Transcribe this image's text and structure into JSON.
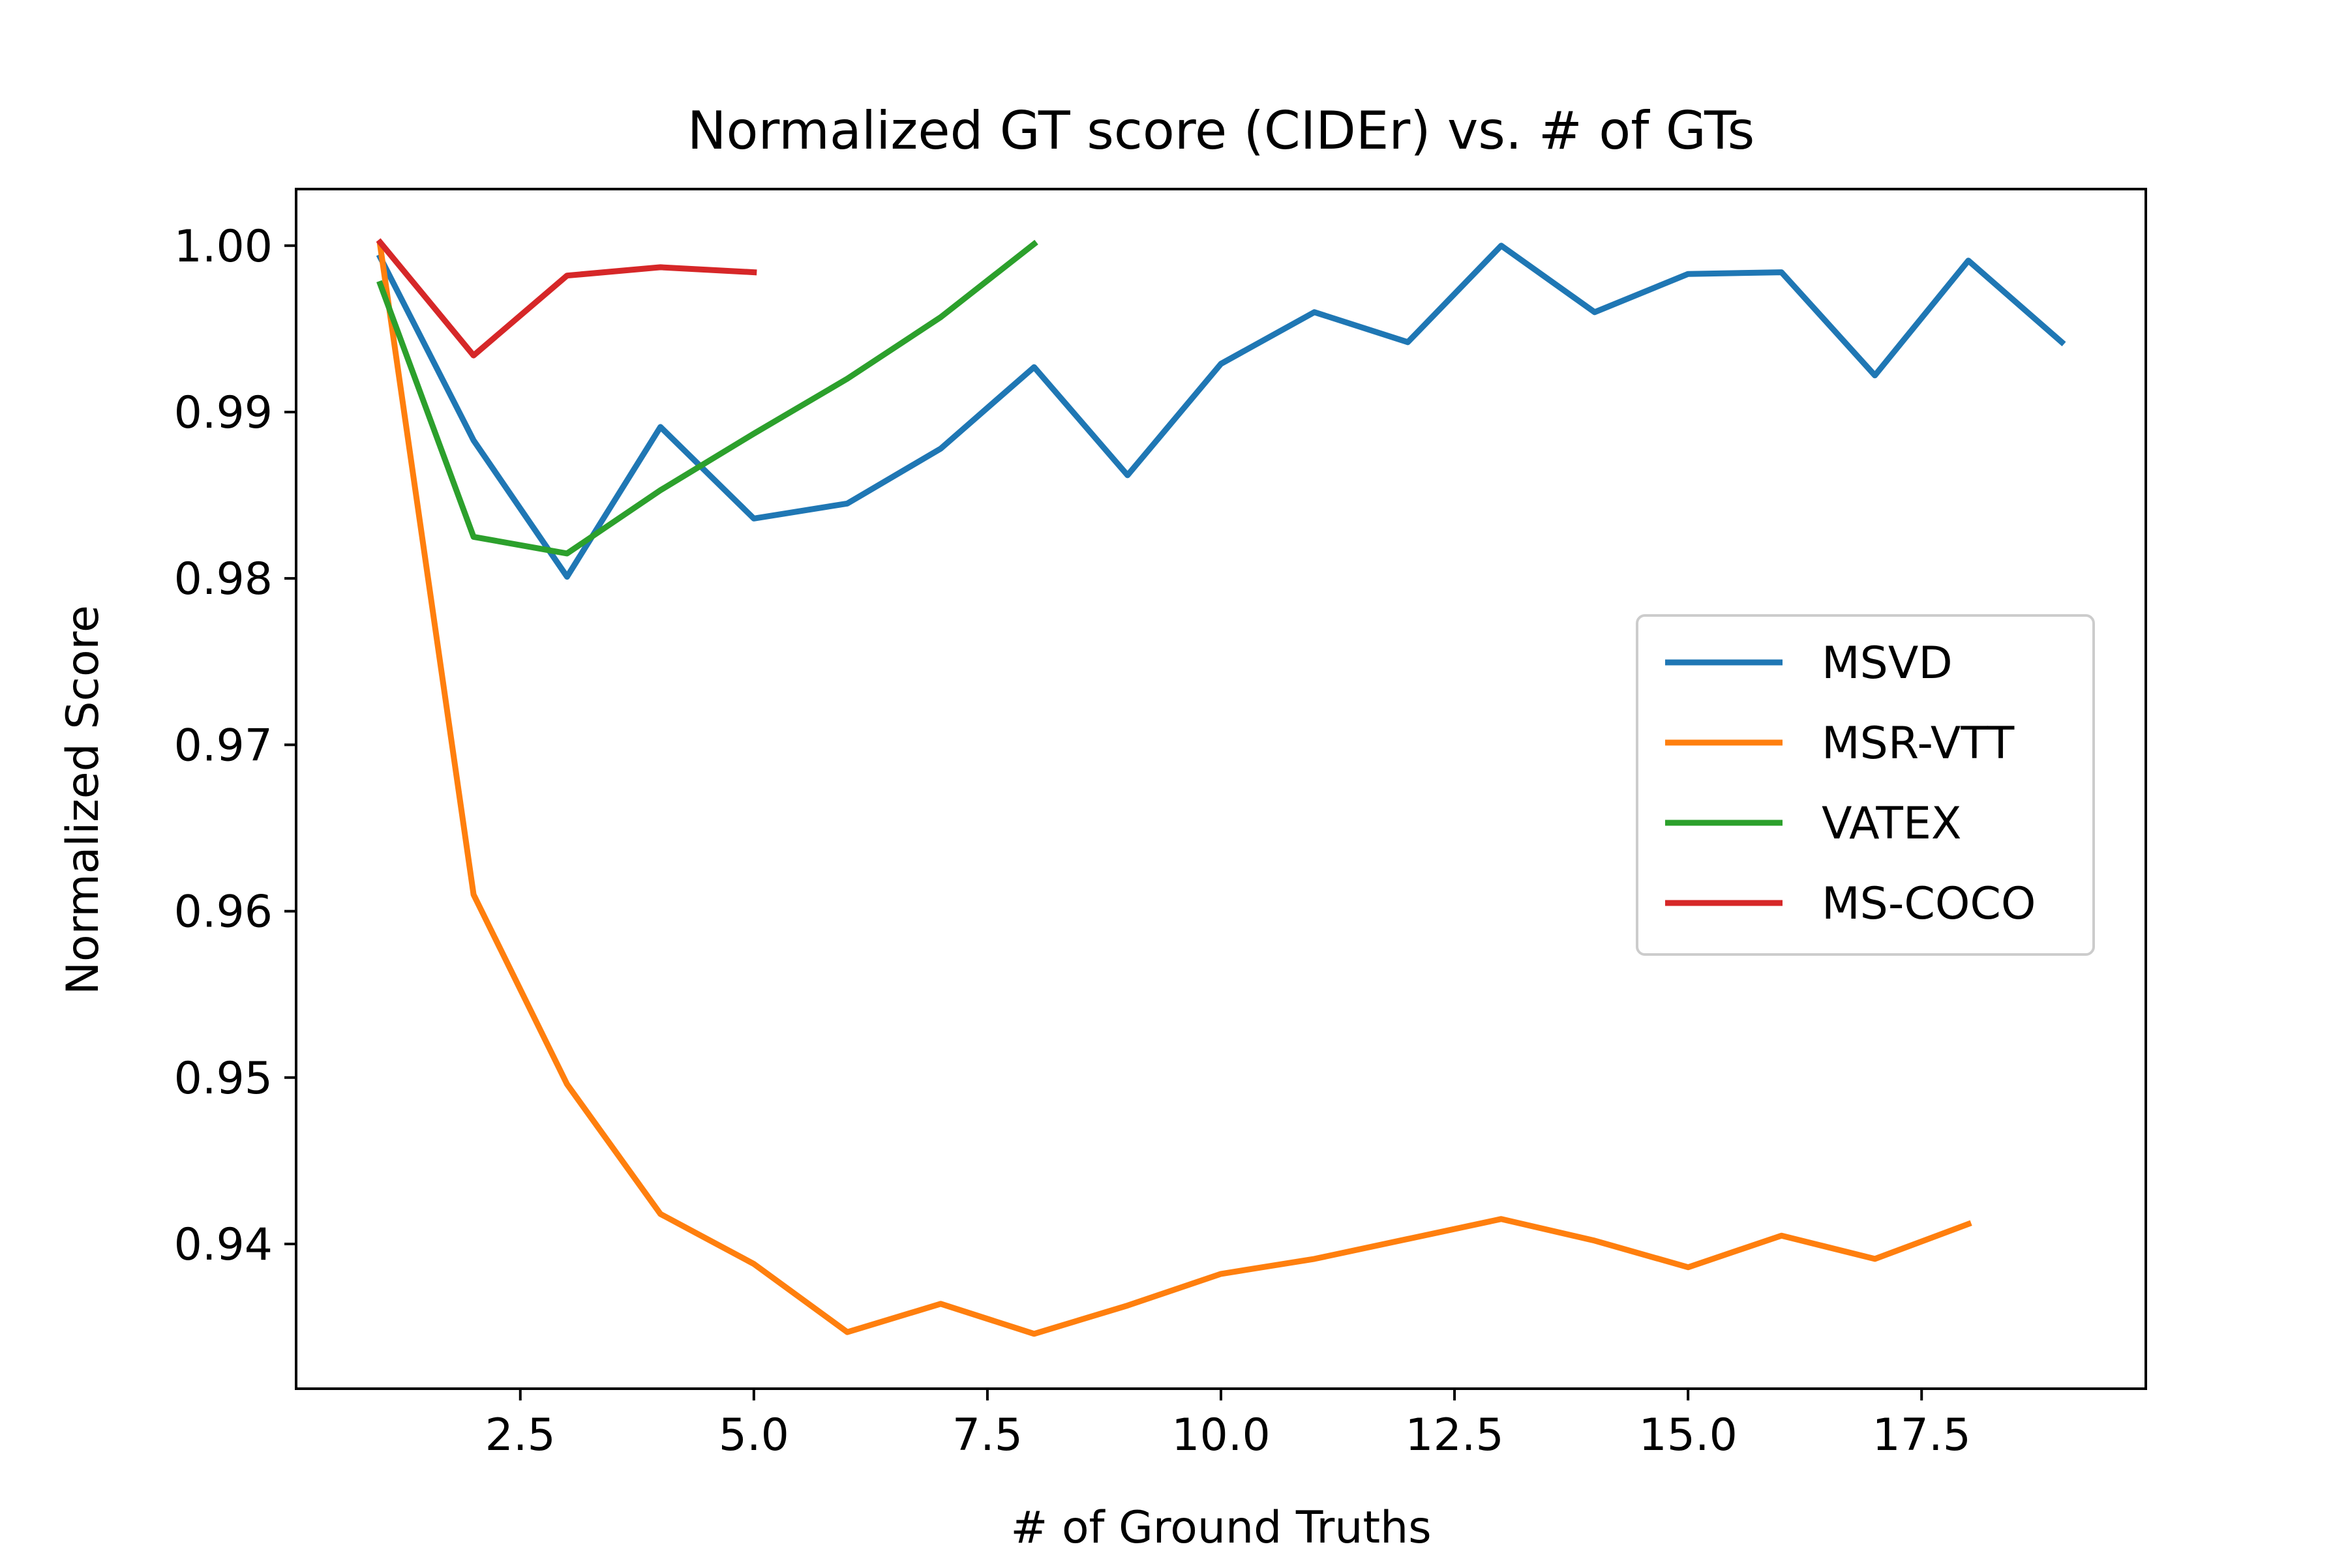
{
  "chart_data": {
    "type": "line",
    "title": "Normalized GT score (CIDEr) vs. # of GTs",
    "xlabel": "# of Ground Truths",
    "ylabel": "Normalized Score",
    "xlim": [
      0.1,
      19.9
    ],
    "ylim": [
      0.9313,
      1.0034
    ],
    "xticks": [
      "2.5",
      "5.0",
      "7.5",
      "10.0",
      "12.5",
      "15.0",
      "17.5"
    ],
    "yticks": [
      "0.94",
      "0.95",
      "0.96",
      "0.97",
      "0.98",
      "0.99",
      "1.00"
    ],
    "grid": false,
    "legend_position": "center-right",
    "series": [
      {
        "name": "MSVD",
        "color": "#1f77b4",
        "x": [
          1,
          2,
          3,
          4,
          5,
          6,
          7,
          8,
          9,
          10,
          11,
          12,
          13,
          14,
          15,
          16,
          17,
          18,
          19
        ],
        "y": [
          0.9993,
          0.9883,
          0.9801,
          0.9891,
          0.9836,
          0.9845,
          0.9878,
          0.9927,
          0.9862,
          0.9929,
          0.996,
          0.9942,
          1.0,
          0.996,
          0.9983,
          0.9984,
          0.9922,
          0.9991,
          0.9942
        ]
      },
      {
        "name": "MSR-VTT",
        "color": "#ff7f0e",
        "x": [
          1,
          2,
          3,
          4,
          5,
          6,
          7,
          8,
          9,
          10,
          11,
          12,
          13,
          14,
          15,
          16,
          17,
          18
        ],
        "y": [
          1.0,
          0.961,
          0.9496,
          0.9418,
          0.9388,
          0.9347,
          0.9364,
          0.9346,
          0.9363,
          0.9382,
          0.9391,
          0.9403,
          0.9415,
          0.9402,
          0.9386,
          0.9405,
          0.9391,
          0.9412
        ]
      },
      {
        "name": "VATEX",
        "color": "#2ca02c",
        "x": [
          1,
          2,
          3,
          4,
          5,
          6,
          7,
          8
        ],
        "y": [
          0.9977,
          0.9825,
          0.9815,
          0.9853,
          0.9887,
          0.992,
          0.9957,
          1.0001
        ]
      },
      {
        "name": "MS-COCO",
        "color": "#d62728",
        "x": [
          1,
          2,
          3,
          4,
          5
        ],
        "y": [
          1.0002,
          0.9934,
          0.9982,
          0.9987,
          0.9984
        ]
      }
    ]
  }
}
